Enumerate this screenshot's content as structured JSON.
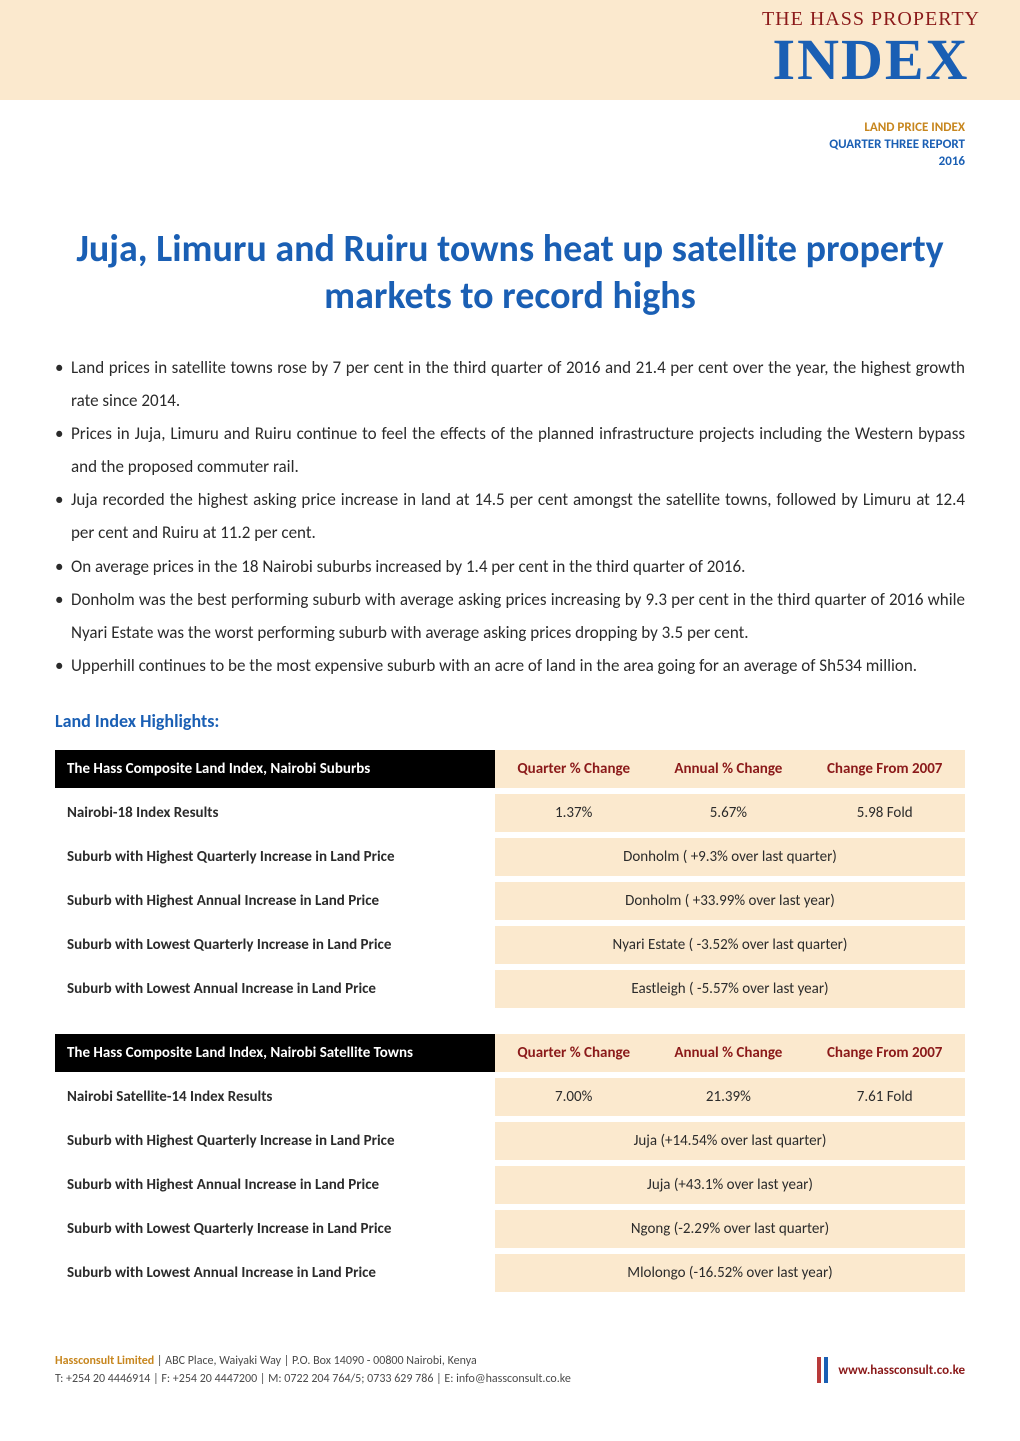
{
  "colors": {
    "cream": "#fbe9ce",
    "brand_blue": "#1a5fb4",
    "brand_red": "#8b1a1a",
    "accent_orange": "#c7861e",
    "text": "#2b2b2b",
    "black": "#000000",
    "white": "#ffffff"
  },
  "logo": {
    "top": "THE HASS PROPERTY",
    "bottom": "INDEX"
  },
  "meta": {
    "line1": "LAND PRICE INDEX",
    "line2": "QUARTER THREE REPORT",
    "line3": "2016"
  },
  "title": "Juja, Limuru and Ruiru towns heat up satellite property markets to record highs",
  "bullets": [
    "Land prices in satellite towns rose by 7 per cent in the third quarter of 2016 and 21.4 per cent over the year, the highest growth rate since 2014.",
    "Prices in Juja, Limuru and Ruiru continue to feel the effects of the planned infrastructure projects including the Western bypass and the proposed commuter rail.",
    "Juja recorded the highest asking price increase in land at 14.5 per cent amongst the satellite towns, followed by Limuru at 12.4 per cent and Ruiru at 11.2 per cent.",
    "On average prices in the 18 Nairobi suburbs increased by 1.4 per cent in the third quarter of 2016.",
    "Donholm was the best performing suburb with average asking prices increasing by 9.3 per cent in the third quarter of 2016 while Nyari Estate was the worst performing suburb with average asking prices dropping by 3.5 per cent.",
    "Upperhill continues to be the most expensive suburb with an acre of land in the area going for an average of Sh534 million."
  ],
  "highlights_heading": "Land Index Highlights:",
  "table1": {
    "header_left": "The Hass Composite Land Index, Nairobi Suburbs",
    "header_cols": [
      "Quarter % Change",
      "Annual % Change",
      "Change From 2007"
    ],
    "row1": {
      "label": "Nairobi-18 Index Results",
      "values": [
        "1.37%",
        "5.67%",
        "5.98 Fold"
      ]
    },
    "spanrows": [
      {
        "label": "Suburb with Highest Quarterly Increase in Land Price",
        "value": "Donholm ( +9.3% over last quarter)"
      },
      {
        "label": "Suburb with Highest Annual Increase in Land Price",
        "value": "Donholm ( +33.99% over last year)"
      },
      {
        "label": "Suburb with Lowest Quarterly Increase in Land Price",
        "value": "Nyari Estate ( -3.52% over last quarter)"
      },
      {
        "label": "Suburb with Lowest Annual Increase in Land Price",
        "value": "Eastleigh ( -5.57% over last year)"
      }
    ]
  },
  "table2": {
    "header_left": "The Hass Composite Land Index, Nairobi Satellite Towns",
    "header_cols": [
      "Quarter % Change",
      "Annual % Change",
      "Change From 2007"
    ],
    "row1": {
      "label": "Nairobi Satellite-14 Index Results",
      "values": [
        "7.00%",
        "21.39%",
        "7.61 Fold"
      ]
    },
    "spanrows": [
      {
        "label": "Suburb with Highest Quarterly Increase in Land Price",
        "value": "Juja (+14.54% over last quarter)"
      },
      {
        "label": "Suburb with Highest Annual Increase in Land Price",
        "value": "Juja (+43.1% over last year)"
      },
      {
        "label": "Suburb with Lowest Quarterly Increase in Land Price",
        "value": "Ngong (-2.29% over last quarter)"
      },
      {
        "label": "Suburb with Lowest Annual Increase in Land Price",
        "value": "Mlolongo (-16.52% over last year)"
      }
    ]
  },
  "footer": {
    "company": "Hassconsult Limited",
    "address": " | ABC Place, Waiyaki Way | P.O. Box 14090 - 00800 Nairobi, Kenya",
    "contacts": "T: +254 20 4446914 | F: +254 20 4447200 | M: 0722 204 764/5; 0733 629 786 | E: info@hassconsult.co.ke",
    "website": "www.hassconsult.co.ke"
  }
}
